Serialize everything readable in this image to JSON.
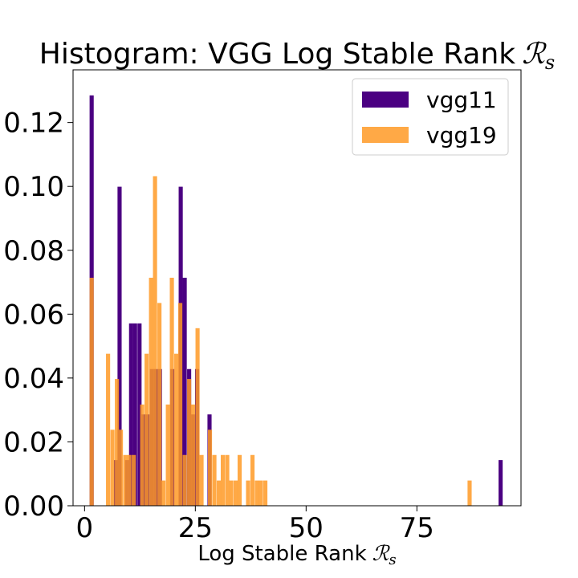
{
  "chart_data": {
    "type": "bar",
    "title": "Histogram: VGG Log Stable Rank",
    "title_symbol": "ℛ",
    "title_subscript": "s",
    "xlabel": "Log Stable Rank",
    "xlabel_symbol": "ℛ",
    "xlabel_subscript": "s",
    "ylabel": "",
    "xlim": [
      -2.6,
      98.5
    ],
    "ylim": [
      0,
      0.1365
    ],
    "x_ticks": [
      0,
      25,
      50,
      75
    ],
    "x_tick_labels": [
      "0",
      "25",
      "50",
      "75"
    ],
    "y_ticks": [
      0,
      0.02,
      0.04,
      0.06,
      0.08,
      0.1,
      0.12
    ],
    "y_tick_labels": [
      "0.00",
      "0.02",
      "0.04",
      "0.06",
      "0.08",
      "0.10",
      "0.12"
    ],
    "grid": false,
    "legend": "top-right",
    "overlap_color": "#e57714",
    "series": [
      {
        "name": "vgg11",
        "color": "#4b0082",
        "bin_width": 0.93,
        "bars": [
          {
            "x": 1.6,
            "y": 0.1285
          },
          {
            "x": 7.1,
            "y": 0.0143
          },
          {
            "x": 7.9,
            "y": 0.0999
          },
          {
            "x": 9.6,
            "y": 0.0143
          },
          {
            "x": 10.5,
            "y": 0.0571
          },
          {
            "x": 11.4,
            "y": 0.0571
          },
          {
            "x": 12.4,
            "y": 0.0571
          },
          {
            "x": 13.3,
            "y": 0.0286
          },
          {
            "x": 14.2,
            "y": 0.0286
          },
          {
            "x": 15.2,
            "y": 0.0428
          },
          {
            "x": 16.1,
            "y": 0.0428
          },
          {
            "x": 17.0,
            "y": 0.0428
          },
          {
            "x": 19.8,
            "y": 0.0428
          },
          {
            "x": 21.7,
            "y": 0.0999
          },
          {
            "x": 22.6,
            "y": 0.0714
          },
          {
            "x": 23.6,
            "y": 0.0428
          },
          {
            "x": 24.5,
            "y": 0.0286
          },
          {
            "x": 25.4,
            "y": 0.0428
          },
          {
            "x": 28.2,
            "y": 0.0286
          },
          {
            "x": 93.9,
            "y": 0.0143
          }
        ]
      },
      {
        "name": "vgg19",
        "color": "#ff9a26",
        "bin_width": 0.93,
        "bars": [
          {
            "x": 1.6,
            "y": 0.0714
          },
          {
            "x": 5.3,
            "y": 0.0476
          },
          {
            "x": 6.3,
            "y": 0.0238
          },
          {
            "x": 7.3,
            "y": 0.0397
          },
          {
            "x": 8.2,
            "y": 0.0238
          },
          {
            "x": 9.2,
            "y": 0.0159
          },
          {
            "x": 10.1,
            "y": 0.0159
          },
          {
            "x": 11.1,
            "y": 0.0159
          },
          {
            "x": 13.0,
            "y": 0.0317
          },
          {
            "x": 14.0,
            "y": 0.0476
          },
          {
            "x": 15.0,
            "y": 0.0714
          },
          {
            "x": 15.9,
            "y": 0.1032
          },
          {
            "x": 16.9,
            "y": 0.0635
          },
          {
            "x": 17.8,
            "y": 0.0079
          },
          {
            "x": 18.8,
            "y": 0.0317
          },
          {
            "x": 19.7,
            "y": 0.0714
          },
          {
            "x": 20.7,
            "y": 0.0476
          },
          {
            "x": 21.6,
            "y": 0.0635
          },
          {
            "x": 22.6,
            "y": 0.0159
          },
          {
            "x": 23.6,
            "y": 0.0397
          },
          {
            "x": 24.5,
            "y": 0.0317
          },
          {
            "x": 25.5,
            "y": 0.0556
          },
          {
            "x": 26.4,
            "y": 0.0159
          },
          {
            "x": 28.3,
            "y": 0.0238
          },
          {
            "x": 29.3,
            "y": 0.0159
          },
          {
            "x": 30.3,
            "y": 0.0079
          },
          {
            "x": 31.2,
            "y": 0.0159
          },
          {
            "x": 32.2,
            "y": 0.0159
          },
          {
            "x": 33.1,
            "y": 0.0079
          },
          {
            "x": 34.1,
            "y": 0.0079
          },
          {
            "x": 35.0,
            "y": 0.0159
          },
          {
            "x": 36.9,
            "y": 0.0079
          },
          {
            "x": 37.9,
            "y": 0.0159
          },
          {
            "x": 38.9,
            "y": 0.0079
          },
          {
            "x": 39.8,
            "y": 0.0079
          },
          {
            "x": 40.8,
            "y": 0.0079
          },
          {
            "x": 86.9,
            "y": 0.0079
          }
        ]
      }
    ]
  }
}
